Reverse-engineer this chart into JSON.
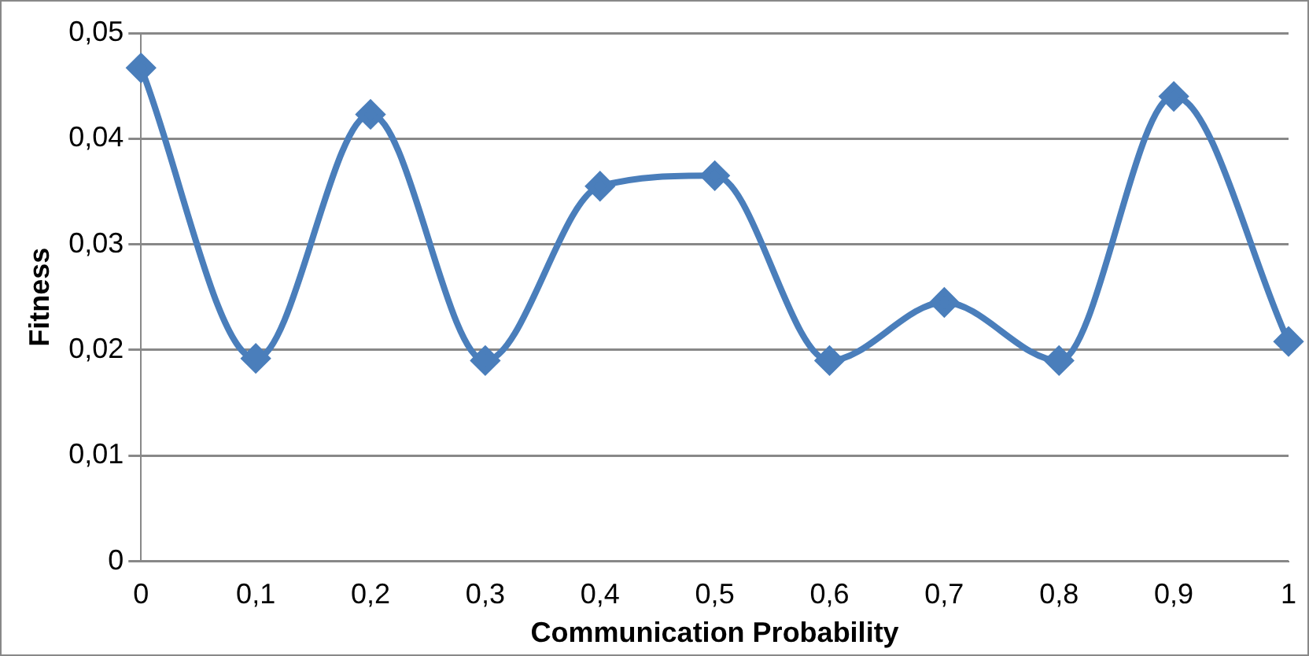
{
  "chart_data": {
    "type": "line",
    "xlabel": "Communication Probability",
    "ylabel": "Fitness",
    "categories": [
      "0",
      "0,1",
      "0,2",
      "0,3",
      "0,4",
      "0,5",
      "0,6",
      "0,7",
      "0,8",
      "0,9",
      "1"
    ],
    "series": [
      {
        "color": "#4a7ebb",
        "values": [
          0.0467,
          0.0192,
          0.0423,
          0.019,
          0.0355,
          0.0365,
          0.019,
          0.0245,
          0.019,
          0.044,
          0.0208
        ]
      }
    ],
    "ylim": [
      0,
      0.05
    ],
    "yticks": [
      {
        "value": 0,
        "label": "0"
      },
      {
        "value": 0.01,
        "label": "0,01"
      },
      {
        "value": 0.02,
        "label": "0,02"
      },
      {
        "value": 0.03,
        "label": "0,03"
      },
      {
        "value": 0.04,
        "label": "0,04"
      },
      {
        "value": 0.05,
        "label": "0,05"
      }
    ],
    "grid": "y",
    "legend": false,
    "marker": "diamond",
    "line_style": "solid"
  }
}
